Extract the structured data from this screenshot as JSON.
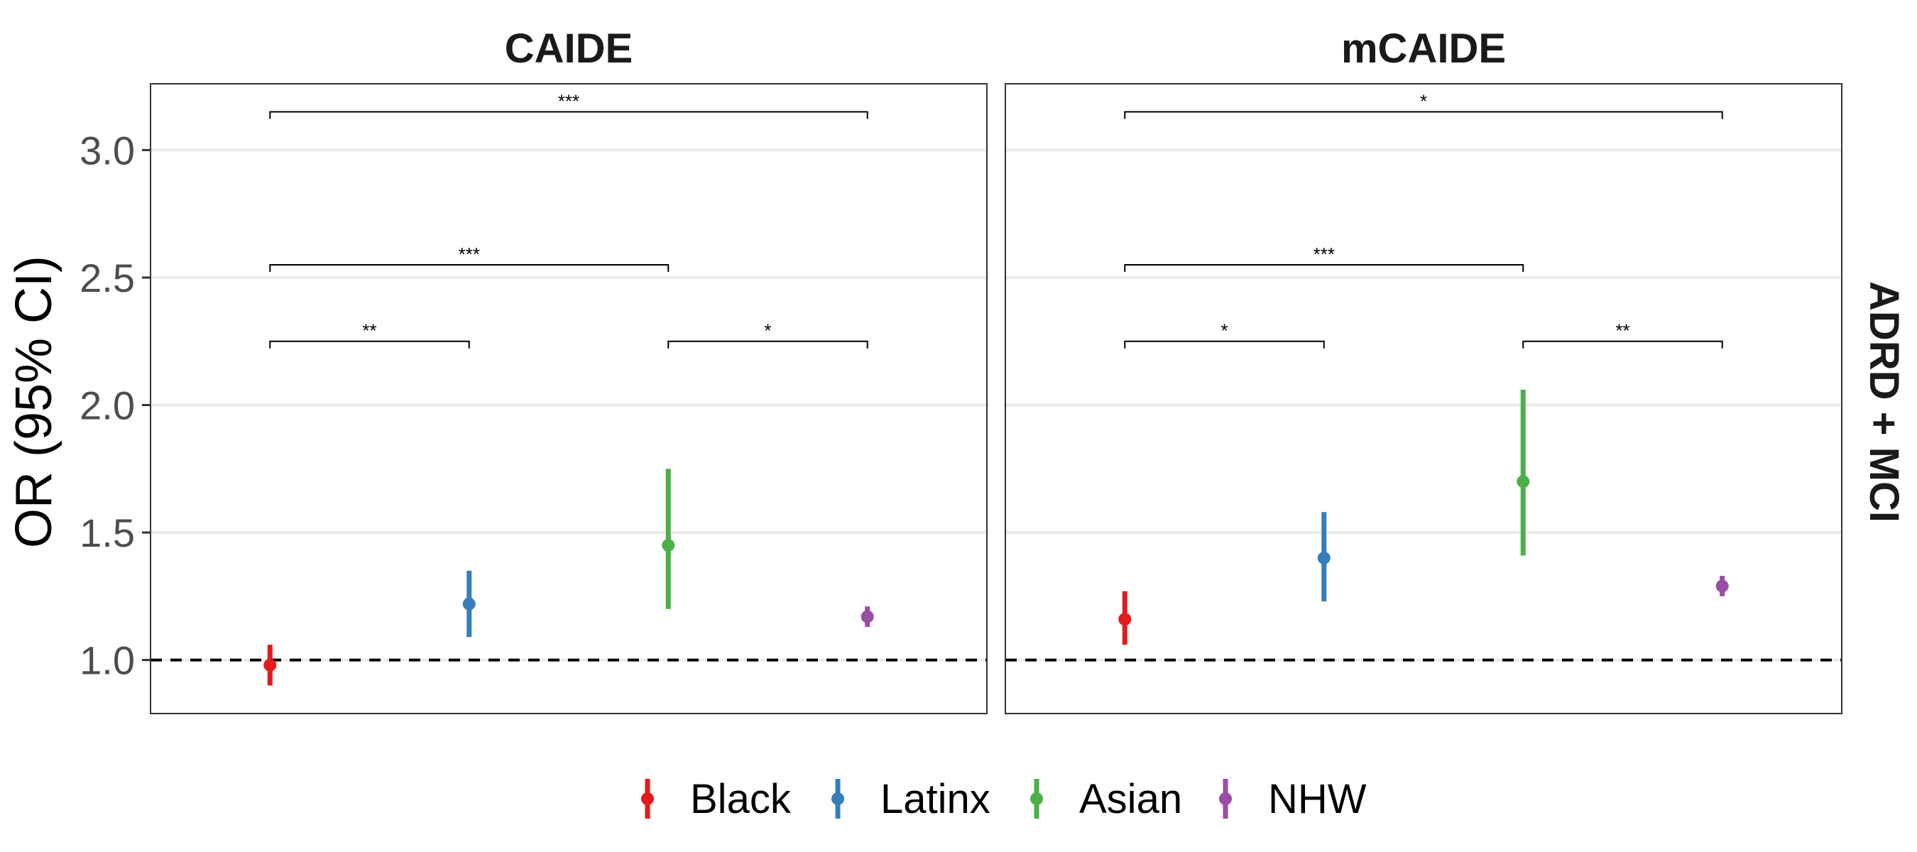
{
  "chart_data": {
    "type": "scatter",
    "subtype": "point-range (odds ratio with 95% CI), faceted",
    "ylabel": "OR (95% CI)",
    "xlabel": "",
    "ylim": [
      0.79,
      3.26
    ],
    "yticks": [
      1.0,
      1.5,
      2.0,
      2.5,
      3.0
    ],
    "ytick_labels": [
      "1.0",
      "1.5",
      "2.0",
      "2.5",
      "3.0"
    ],
    "reference_line": {
      "y": 1.0,
      "style": "dashed"
    },
    "grid": true,
    "strip_label": "ADRD + MCI",
    "categories": [
      "Black",
      "Latinx",
      "Asian",
      "NHW"
    ],
    "colors": {
      "Black": "#e41a1c",
      "Latinx": "#377eb8",
      "Asian": "#4daf4a",
      "NHW": "#984ea3"
    },
    "legend": {
      "position": "bottom",
      "entries": [
        "Black",
        "Latinx",
        "Asian",
        "NHW"
      ]
    },
    "panels": [
      {
        "title": "CAIDE",
        "points": [
          {
            "group": "Black",
            "or": 0.98,
            "lower": 0.9,
            "upper": 1.06
          },
          {
            "group": "Latinx",
            "or": 1.22,
            "lower": 1.09,
            "upper": 1.35
          },
          {
            "group": "Asian",
            "or": 1.45,
            "lower": 1.2,
            "upper": 1.75
          },
          {
            "group": "NHW",
            "or": 1.17,
            "lower": 1.13,
            "upper": 1.21
          }
        ],
        "brackets": [
          {
            "from": "Black",
            "to": "NHW",
            "y": 3.15,
            "label": "***"
          },
          {
            "from": "Black",
            "to": "Asian",
            "y": 2.55,
            "label": "***"
          },
          {
            "from": "Black",
            "to": "Latinx",
            "y": 2.25,
            "label": "**"
          },
          {
            "from": "Asian",
            "to": "NHW",
            "y": 2.25,
            "label": "*"
          }
        ]
      },
      {
        "title": "mCAIDE",
        "points": [
          {
            "group": "Black",
            "or": 1.16,
            "lower": 1.06,
            "upper": 1.27
          },
          {
            "group": "Latinx",
            "or": 1.4,
            "lower": 1.23,
            "upper": 1.58
          },
          {
            "group": "Asian",
            "or": 1.7,
            "lower": 1.41,
            "upper": 2.06
          },
          {
            "group": "NHW",
            "or": 1.29,
            "lower": 1.25,
            "upper": 1.33
          }
        ],
        "brackets": [
          {
            "from": "Black",
            "to": "NHW",
            "y": 3.15,
            "label": "*"
          },
          {
            "from": "Black",
            "to": "Asian",
            "y": 2.55,
            "label": "***"
          },
          {
            "from": "Black",
            "to": "Latinx",
            "y": 2.25,
            "label": "*"
          },
          {
            "from": "Asian",
            "to": "NHW",
            "y": 2.25,
            "label": "**"
          }
        ]
      }
    ]
  }
}
